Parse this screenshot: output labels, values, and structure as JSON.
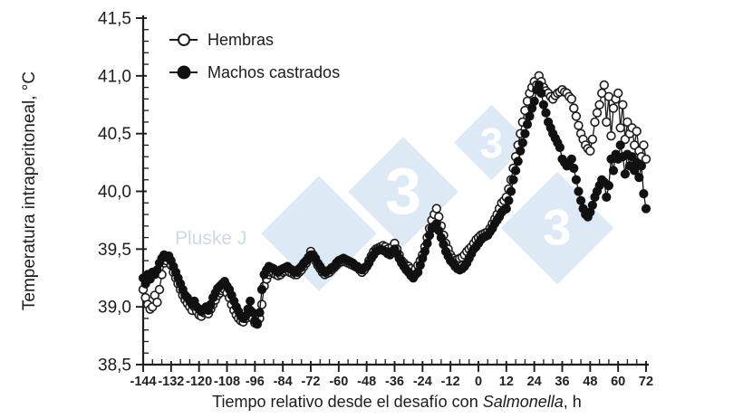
{
  "figure": {
    "background": "#ffffff"
  },
  "watermark": {
    "researcher_text": "Pluske J",
    "logo_digit": "3",
    "diamond_color": "#dde9f4",
    "digit_color": "#ffffff",
    "text_color": "#ccdae6"
  },
  "chart_data": {
    "type": "line",
    "title": "",
    "xlabel": "Tiempo relativo desde el desafío con Salmonella, h",
    "xlabel_prefix": "Tiempo relativo desde el desafío con ",
    "xlabel_italic": "Salmonella",
    "xlabel_suffix": ", h",
    "ylabel": "Temperatura intraperitoneal, °C",
    "xlim": [
      -144,
      72
    ],
    "ylim": [
      38.5,
      41.5
    ],
    "x_tick_values": [
      -144,
      -132,
      -120,
      -108,
      -96,
      -84,
      -72,
      -60,
      -48,
      -36,
      -24,
      -12,
      0,
      12,
      24,
      36,
      48,
      60,
      72
    ],
    "x_tick_labels": [
      "-144",
      "-132",
      "-120",
      "-108",
      "-96",
      "-84",
      "-72",
      "-60",
      "-48",
      "-36",
      "-24",
      "-12",
      "0",
      "12",
      "24",
      "36",
      "48",
      "60",
      "72"
    ],
    "x_minor_step": 4,
    "y_tick_values": [
      38.5,
      39.0,
      39.5,
      40.0,
      40.5,
      41.0,
      41.5
    ],
    "y_tick_labels": [
      "38,5",
      "39,0",
      "39,5",
      "40,0",
      "40,5",
      "41,0",
      "41,5"
    ],
    "y_minor_step": 0.1,
    "grid": false,
    "legend_position": "top-left",
    "axis_color": "#1c1c1c",
    "x_start": -144,
    "x_step": 1,
    "series": [
      {
        "name": "Hembras",
        "marker": "open",
        "stroke": "#1c1c1c",
        "fill": "#ffffff",
        "values": [
          39.15,
          39.08,
          39.02,
          38.98,
          39.0,
          39.1,
          39.04,
          39.15,
          39.28,
          39.38,
          39.4,
          39.42,
          39.36,
          39.3,
          39.25,
          39.2,
          39.15,
          39.1,
          39.06,
          39.03,
          39.0,
          38.97,
          39.0,
          38.96,
          38.93,
          38.92,
          38.95,
          38.97,
          38.94,
          38.98,
          39.02,
          39.06,
          39.1,
          39.12,
          39.14,
          39.15,
          39.12,
          39.08,
          39.02,
          38.97,
          38.93,
          38.9,
          38.88,
          38.87,
          38.9,
          38.93,
          38.97,
          38.9,
          38.86,
          38.85,
          38.9,
          39.02,
          39.18,
          39.24,
          39.28,
          39.3,
          39.3,
          39.28,
          39.27,
          39.28,
          39.3,
          39.31,
          39.32,
          39.3,
          39.29,
          39.28,
          39.28,
          39.3,
          39.32,
          39.35,
          39.38,
          39.42,
          39.48,
          39.45,
          39.4,
          39.36,
          39.33,
          39.3,
          39.28,
          39.29,
          39.3,
          39.32,
          39.34,
          39.36,
          39.38,
          39.39,
          39.4,
          39.39,
          39.38,
          39.37,
          39.36,
          39.35,
          39.34,
          39.32,
          39.3,
          39.32,
          39.35,
          39.4,
          39.44,
          39.48,
          39.5,
          39.51,
          39.52,
          39.53,
          39.52,
          39.5,
          39.48,
          39.52,
          39.55,
          39.5,
          39.45,
          39.4,
          39.38,
          39.36,
          39.35,
          39.33,
          39.3,
          39.33,
          39.36,
          39.4,
          39.45,
          39.52,
          39.6,
          39.68,
          39.75,
          39.8,
          39.85,
          39.78,
          39.7,
          39.62,
          39.55,
          39.5,
          39.45,
          39.42,
          39.4,
          39.41,
          39.42,
          39.43,
          39.45,
          39.48,
          39.5,
          39.52,
          39.55,
          39.58,
          39.6,
          39.62,
          39.63,
          39.64,
          39.65,
          39.68,
          39.72,
          39.76,
          39.8,
          39.85,
          39.9,
          39.92,
          39.95,
          40.02,
          40.1,
          40.2,
          40.3,
          40.4,
          40.5,
          40.6,
          40.7,
          40.78,
          40.85,
          40.9,
          40.95,
          40.92,
          41.0,
          40.95,
          40.9,
          40.87,
          40.85,
          40.82,
          40.8,
          40.83,
          40.85,
          40.86,
          40.88,
          40.86,
          40.85,
          40.82,
          40.8,
          40.72,
          40.65,
          40.57,
          40.5,
          40.45,
          40.4,
          40.37,
          40.35,
          40.45,
          40.6,
          40.68,
          40.75,
          40.85,
          40.92,
          40.6,
          40.82,
          40.48,
          40.72,
          40.8,
          40.85,
          40.55,
          40.75,
          40.45,
          40.6,
          40.5,
          40.55,
          40.4,
          40.52,
          40.35,
          40.3,
          40.4,
          40.28
        ]
      },
      {
        "name": "Machos castrados",
        "marker": "filled",
        "stroke": "#111111",
        "fill": "#111111",
        "values": [
          39.25,
          39.2,
          39.28,
          39.24,
          39.3,
          39.28,
          39.32,
          39.38,
          39.42,
          39.45,
          39.43,
          39.44,
          39.4,
          39.35,
          39.3,
          39.25,
          39.2,
          39.15,
          39.1,
          39.08,
          39.05,
          39.02,
          39.05,
          39.0,
          38.98,
          38.96,
          38.98,
          39.0,
          38.97,
          39.02,
          39.08,
          39.12,
          39.16,
          39.18,
          39.2,
          39.22,
          39.18,
          39.15,
          39.1,
          39.05,
          39.0,
          38.96,
          38.92,
          38.9,
          38.92,
          38.98,
          39.05,
          38.95,
          38.88,
          38.86,
          38.95,
          39.15,
          39.28,
          39.32,
          39.35,
          39.34,
          39.33,
          39.31,
          39.3,
          39.32,
          39.33,
          39.34,
          39.35,
          39.33,
          39.32,
          39.3,
          39.3,
          39.33,
          39.35,
          39.38,
          39.4,
          39.43,
          39.45,
          39.44,
          39.42,
          39.38,
          39.35,
          39.32,
          39.3,
          39.31,
          39.32,
          39.34,
          39.35,
          39.38,
          39.4,
          39.41,
          39.42,
          39.41,
          39.4,
          39.39,
          39.38,
          39.36,
          39.35,
          39.33,
          39.32,
          39.34,
          39.35,
          39.38,
          39.42,
          39.45,
          39.48,
          39.49,
          39.5,
          39.49,
          39.48,
          39.46,
          39.45,
          39.48,
          39.5,
          39.46,
          39.42,
          39.38,
          39.35,
          39.32,
          39.3,
          39.27,
          39.25,
          39.28,
          39.3,
          39.36,
          39.42,
          39.48,
          39.55,
          39.62,
          39.68,
          39.7,
          39.72,
          39.66,
          39.6,
          39.54,
          39.48,
          39.44,
          39.4,
          39.38,
          39.35,
          39.33,
          39.32,
          39.33,
          39.35,
          39.38,
          39.42,
          39.46,
          39.5,
          39.52,
          39.55,
          39.58,
          39.6,
          39.61,
          39.62,
          39.65,
          39.68,
          39.72,
          39.75,
          39.78,
          39.82,
          39.84,
          39.85,
          39.92,
          40.0,
          40.1,
          40.18,
          40.26,
          40.35,
          40.42,
          40.5,
          40.58,
          40.65,
          40.72,
          40.78,
          40.88,
          40.92,
          40.85,
          40.75,
          40.68,
          40.6,
          40.55,
          40.5,
          40.46,
          40.42,
          40.38,
          40.28,
          40.25,
          40.22,
          40.25,
          40.28,
          40.2,
          40.1,
          40.0,
          39.92,
          39.85,
          39.8,
          39.78,
          39.82,
          39.88,
          39.95,
          40.0,
          40.05,
          40.1,
          40.08,
          39.95,
          40.05,
          40.28,
          40.18,
          40.32,
          40.28,
          40.4,
          40.3,
          40.15,
          40.32,
          40.22,
          40.3,
          40.18,
          40.25,
          40.12,
          40.22,
          39.98,
          39.85
        ]
      }
    ]
  }
}
